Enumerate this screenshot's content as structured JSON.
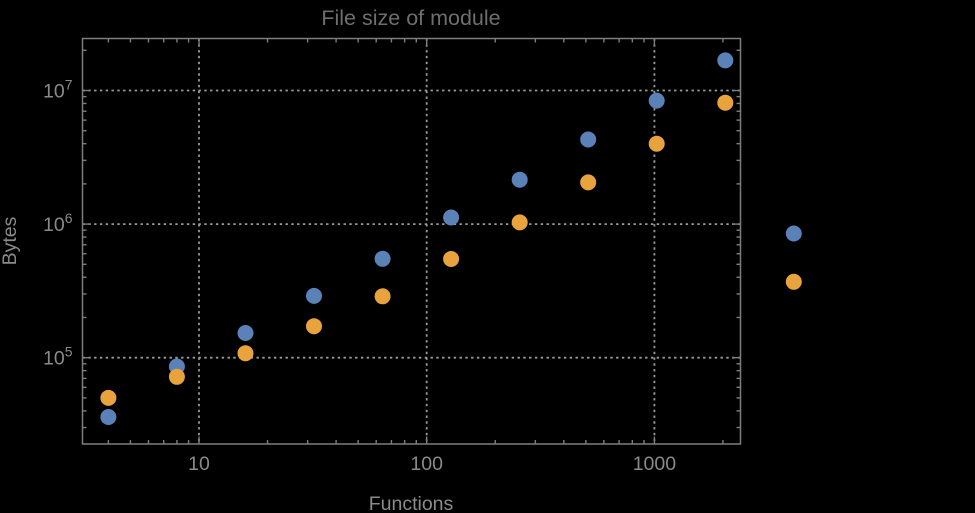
{
  "chart_data": {
    "type": "scatter",
    "title": "File size of module",
    "xlabel": "Functions",
    "ylabel": "Bytes",
    "x_scale": "log",
    "y_scale": "log",
    "grid": "dotted gridlines at decades only, full frame with inward log ticks on all four edges",
    "legend": "none",
    "x": [
      4,
      8,
      16,
      32,
      64,
      128,
      256,
      512,
      1024,
      2048,
      4096
    ],
    "series": [
      {
        "name": "series-1-blue",
        "color": "#5B82B8",
        "values": [
          36000,
          86000,
          153000,
          290000,
          550000,
          1120000,
          2150000,
          4300000,
          8400000,
          16800000,
          850000
        ]
      },
      {
        "name": "series-2-orange",
        "color": "#E8A33D",
        "values": [
          50000,
          72000,
          108000,
          172000,
          288000,
          548000,
          1030000,
          2050000,
          4000000,
          8100000,
          370000
        ]
      }
    ],
    "x_ticks": [
      {
        "value": 10,
        "label": "10"
      },
      {
        "value": 100,
        "label": "100"
      },
      {
        "value": 1000,
        "label": "1000"
      }
    ],
    "y_ticks": [
      {
        "value": 100000,
        "mantissa": "10",
        "exp": "5"
      },
      {
        "value": 1000000,
        "mantissa": "10",
        "exp": "6"
      },
      {
        "value": 10000000,
        "mantissa": "10",
        "exp": "7"
      }
    ],
    "x_range": [
      3.08,
      2389
    ],
    "y_range": [
      22600,
      24500000
    ],
    "note": "last data pair (x=4096) is rendered outside the right edge of the plot frame",
    "palette": {
      "background": "#000000",
      "frame": "#7d7d7d",
      "grid": "#9a9a9a",
      "tick_label": "#8a8a8a",
      "axis_label": "#8a8a8a",
      "title_color": "#6e6e6e"
    }
  }
}
